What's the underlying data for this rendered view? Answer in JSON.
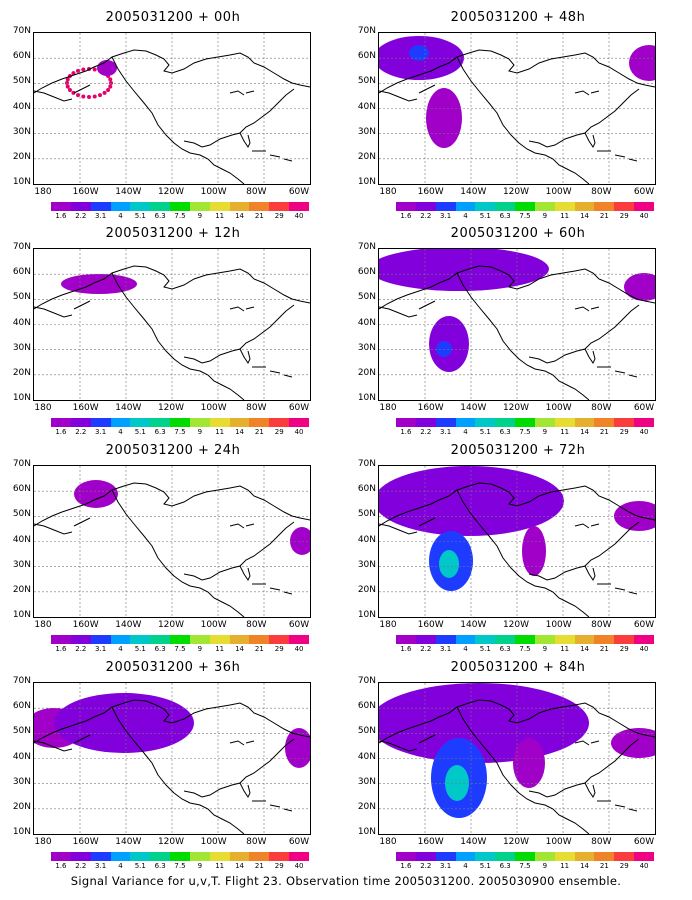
{
  "panels": [
    {
      "title": "2005031200 + 00h",
      "level": 0
    },
    {
      "title": "2005031200 + 48h",
      "level": 4
    },
    {
      "title": "2005031200 + 12h",
      "level": 1
    },
    {
      "title": "2005031200 + 60h",
      "level": 5
    },
    {
      "title": "2005031200 + 24h",
      "level": 2
    },
    {
      "title": "2005031200 + 72h",
      "level": 6
    },
    {
      "title": "2005031200 + 36h",
      "level": 3
    },
    {
      "title": "2005031200 + 84h",
      "level": 7
    }
  ],
  "lat_labels": [
    "70N",
    "60N",
    "50N",
    "40N",
    "30N",
    "20N",
    "10N"
  ],
  "lon_labels": [
    "180",
    "160W",
    "140W",
    "120W",
    "100W",
    "80W",
    "60W"
  ],
  "colorbar": {
    "labels": [
      "1.6",
      "2.2",
      "3.1",
      "4",
      "5.1",
      "6.3",
      "7.5",
      "9",
      "11",
      "14",
      "21",
      "29",
      "40"
    ],
    "colors": [
      "#a000c8",
      "#8200dc",
      "#1e3cff",
      "#00a0ff",
      "#00c8c8",
      "#00d28c",
      "#00dc00",
      "#a0e632",
      "#e6dc32",
      "#e6af2d",
      "#f08228",
      "#fa3c3c",
      "#f00082"
    ]
  },
  "caption": "Signal Variance for u,v,T. Flight 23. Observation time 2005031200. 2005030900 ensemble."
}
